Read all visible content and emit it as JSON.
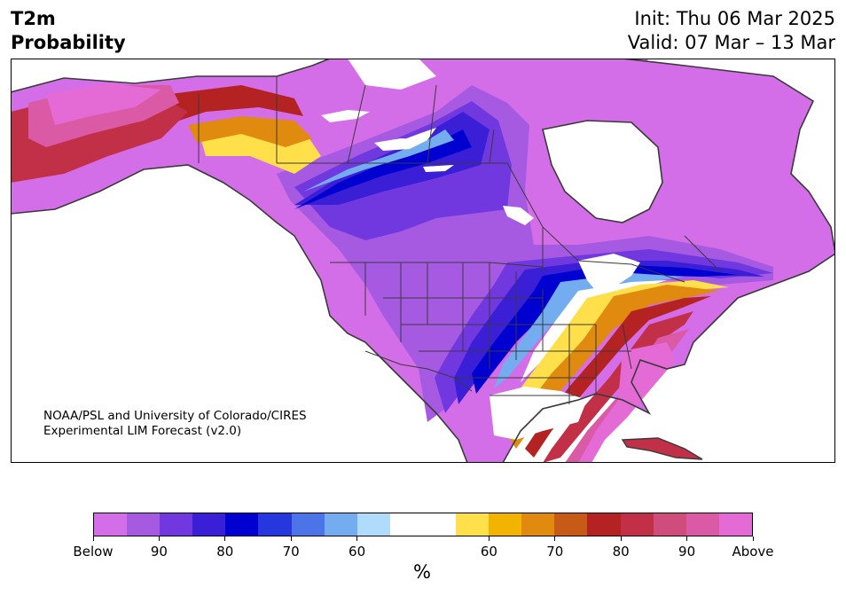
{
  "title": {
    "left_line1": "T2m",
    "left_line2": "Probability",
    "right_line1": "Init: Thu 06 Mar 2025",
    "right_line2": "Valid: 07 Mar – 13 Mar"
  },
  "credit": {
    "line1": "NOAA/PSL and University of Colorado/CIRES",
    "line2": "Experimental LIM Forecast (v2.0)"
  },
  "colorbar": {
    "unit": "%",
    "colors": [
      "#d46ee8",
      "#a65ae2",
      "#7238e0",
      "#3b1fd6",
      "#0000d0",
      "#2737de",
      "#4a74e8",
      "#74acf0",
      "#b0dcfc",
      "#ffffff",
      "#ffffff",
      "#ffe04a",
      "#f2b400",
      "#e08a10",
      "#c85a18",
      "#b42222",
      "#c23048",
      "#d04c7c",
      "#da5aa6",
      "#e46ad6"
    ],
    "ticks": [
      {
        "label": "Below"
      },
      {
        "label": "90"
      },
      {
        "label": "80"
      },
      {
        "label": "70"
      },
      {
        "label": "60"
      },
      {
        "label": "60"
      },
      {
        "label": "70"
      },
      {
        "label": "80"
      },
      {
        "label": "90"
      },
      {
        "label": "Above"
      }
    ]
  },
  "map": {
    "region": "North America",
    "below_color": "#d46ee8",
    "above_color": "#e46ad6",
    "ocean_color": "#ffffff",
    "border_color": "#3a3a3a"
  }
}
